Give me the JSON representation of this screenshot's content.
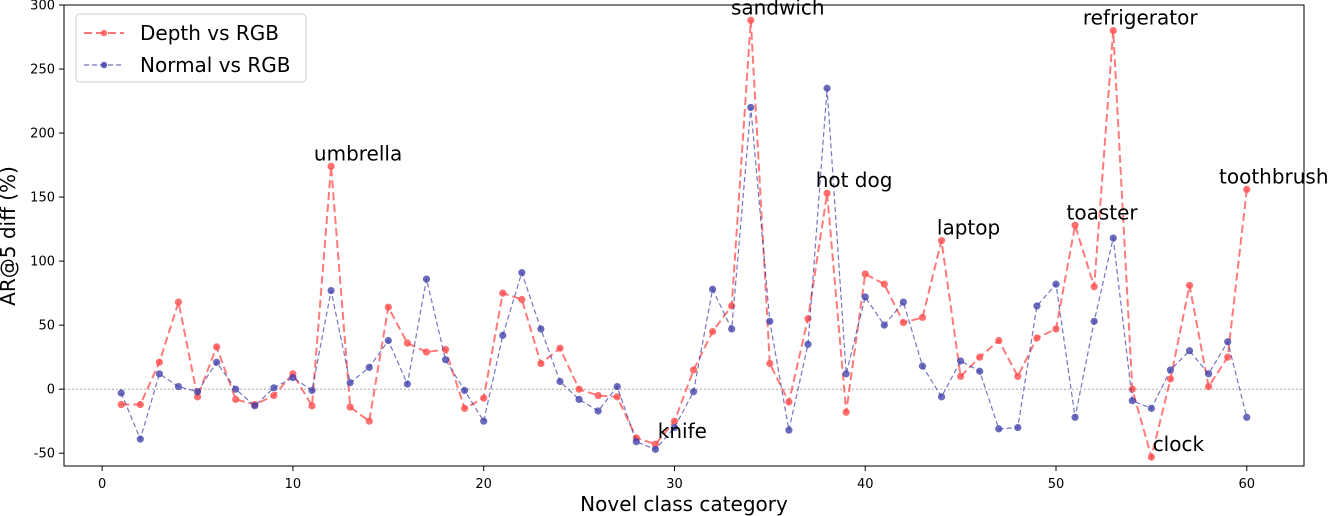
{
  "chart_data": {
    "type": "line",
    "title": "",
    "xlabel": "Novel class category",
    "ylabel": "AR@5 diff (%)",
    "xlim": [
      -2,
      63
    ],
    "ylim": [
      -60,
      300
    ],
    "xticks": [
      0,
      10,
      20,
      30,
      40,
      50,
      60
    ],
    "yticks": [
      -50,
      0,
      50,
      100,
      150,
      200,
      250,
      300
    ],
    "legend_position": "top-left",
    "x": [
      1,
      2,
      3,
      4,
      5,
      6,
      7,
      8,
      9,
      10,
      11,
      12,
      13,
      14,
      15,
      16,
      17,
      18,
      19,
      20,
      21,
      22,
      23,
      24,
      25,
      26,
      27,
      28,
      29,
      30,
      31,
      32,
      33,
      34,
      35,
      36,
      37,
      38,
      39,
      40,
      41,
      42,
      43,
      44,
      45,
      46,
      47,
      48,
      49,
      50,
      51,
      52,
      53,
      54,
      55,
      56,
      57,
      58,
      59,
      60
    ],
    "series": [
      {
        "name": "Depth vs RGB",
        "color": "#ff4d4d",
        "values": [
          -12,
          -12,
          21,
          68,
          -6,
          33,
          -8,
          -12,
          -5,
          12,
          -13,
          174,
          -14,
          -25,
          64,
          36,
          29,
          31,
          -15,
          -7,
          75,
          70,
          20,
          32,
          0,
          -5,
          -6,
          -38,
          -43,
          -25,
          15,
          45,
          65,
          288,
          20,
          -10,
          55,
          153,
          -18,
          90,
          82,
          52,
          56,
          116,
          10,
          25,
          38,
          10,
          40,
          47,
          128,
          80,
          280,
          0,
          -53,
          8,
          81,
          2,
          25,
          156
        ]
      },
      {
        "name": "Normal vs RGB",
        "color": "#3a3aa8",
        "values": [
          -3,
          -39,
          12,
          2,
          -2,
          21,
          0,
          -13,
          1,
          9,
          -1,
          77,
          5,
          17,
          38,
          4,
          86,
          23,
          -1,
          -25,
          42,
          91,
          47,
          6,
          -8,
          -17,
          2,
          -41,
          -47,
          -30,
          -2,
          78,
          47,
          220,
          53,
          -32,
          35,
          235,
          12,
          72,
          50,
          68,
          18,
          -6,
          22,
          14,
          -31,
          -30,
          65,
          82,
          -22,
          53,
          118,
          -9,
          -15,
          15,
          30,
          12,
          37,
          -22
        ]
      }
    ],
    "annotations": [
      {
        "text": "umbrella",
        "x": 12,
        "y": 174
      },
      {
        "text": "sandwich",
        "x": 34,
        "y": 288
      },
      {
        "text": "hot dog",
        "x": 38,
        "y": 153
      },
      {
        "text": "laptop",
        "x": 44,
        "y": 116
      },
      {
        "text": "toaster",
        "x": 51,
        "y": 128
      },
      {
        "text": "refrigerator",
        "x": 53,
        "y": 280
      },
      {
        "text": "toothbrush",
        "x": 60,
        "y": 156
      },
      {
        "text": "knife",
        "x": 29,
        "y": -43
      },
      {
        "text": "clock",
        "x": 55,
        "y": -53
      }
    ]
  }
}
